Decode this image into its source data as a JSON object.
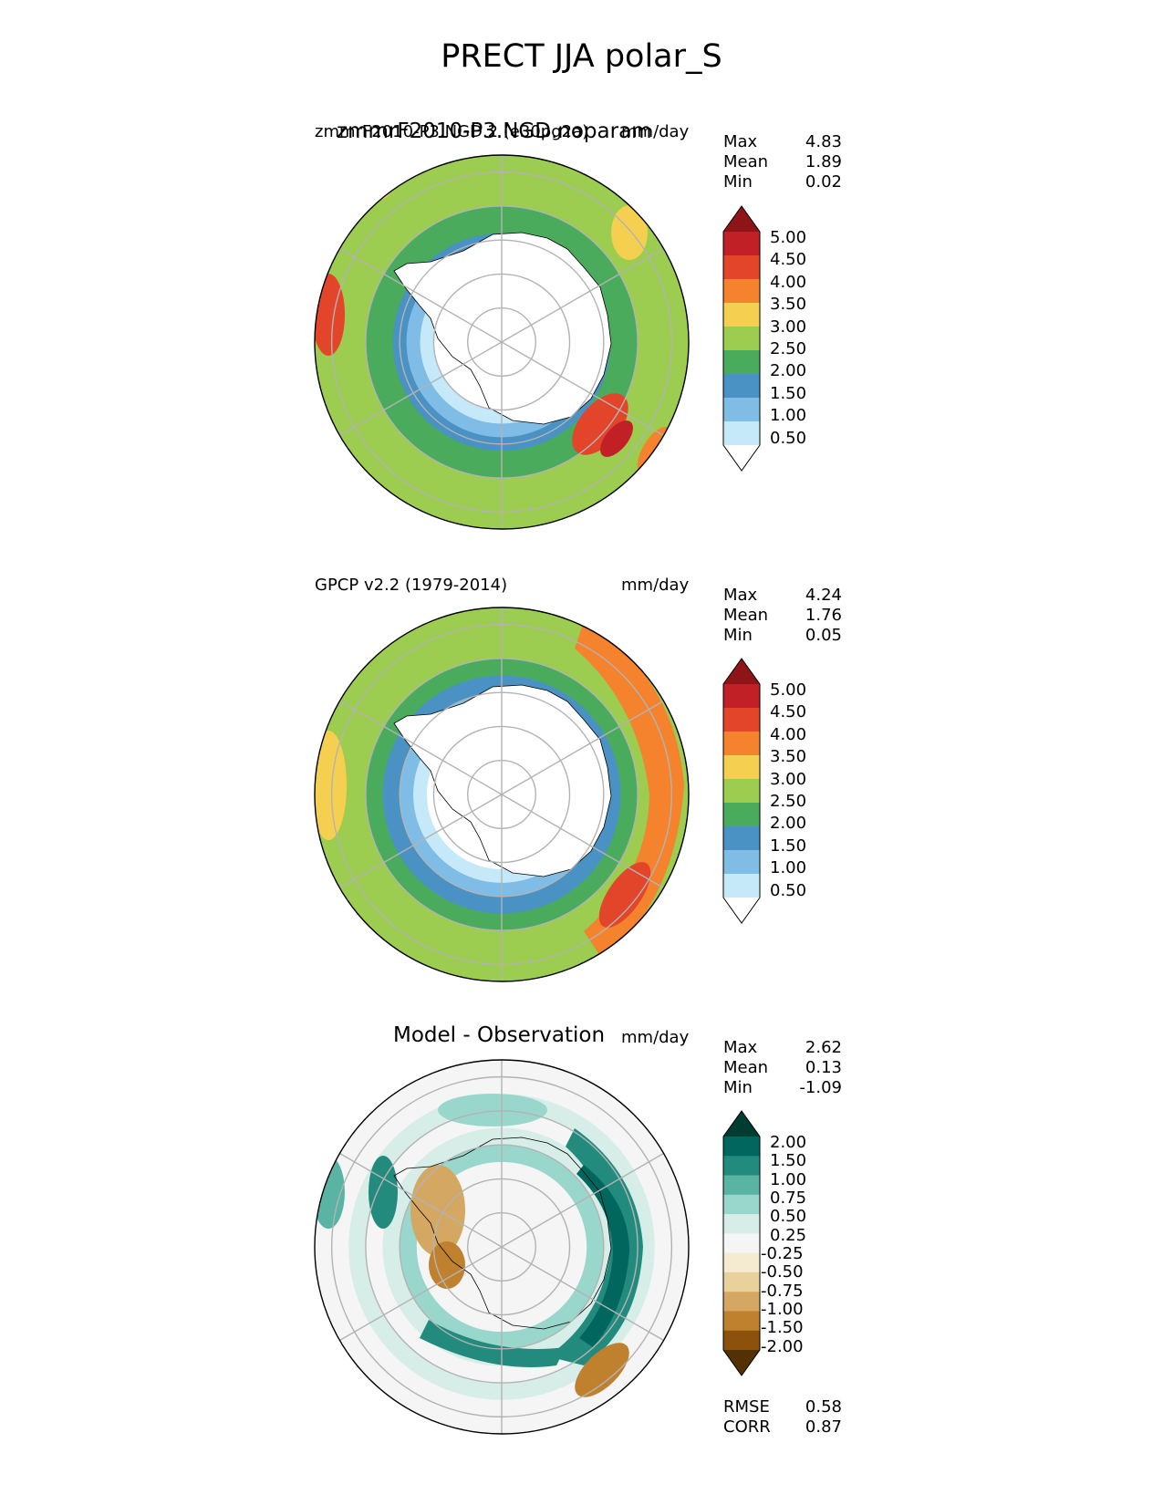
{
  "figure": {
    "title": "PRECT JJA polar_S"
  },
  "colors": {
    "precip_levels": [
      "#ffffff",
      "#c6e9fa",
      "#7fbce6",
      "#4a91c4",
      "#4aab5d",
      "#9ccc50",
      "#f5d050",
      "#f5822d",
      "#e3452a",
      "#c12027",
      "#8e1418"
    ],
    "diff_levels": [
      "#543005",
      "#8c510a",
      "#bf812d",
      "#d4a862",
      "#e8d19a",
      "#f5ebd0",
      "#f5f5f5",
      "#d6ede8",
      "#99d6cc",
      "#5ab4a3",
      "#238a7e",
      "#01665e",
      "#003c30"
    ]
  },
  "panels": [
    {
      "id": "test",
      "center_title": "zmmrF2010-P3.NGD.noparam",
      "left_title": "zmmrF2010-P3.NGD.2 (e30pg2a)",
      "right_title": "mm/day",
      "stats": [
        {
          "label": "Max",
          "value": "4.83"
        },
        {
          "label": "Mean",
          "value": "1.89"
        },
        {
          "label": "Min",
          "value": "0.02"
        }
      ],
      "colorbar": {
        "ticks": [
          "5.00",
          "4.50",
          "4.00",
          "3.50",
          "3.00",
          "2.50",
          "2.00",
          "1.50",
          "1.00",
          "0.50"
        ]
      },
      "rings_mm_day": [
        {
          "lat": -40,
          "value": 2.8
        },
        {
          "lat": -45,
          "value": 2.6
        },
        {
          "lat": -50,
          "value": 2.3
        },
        {
          "lat": -55,
          "value": 2.1
        },
        {
          "lat": -58,
          "value": 1.6
        },
        {
          "lat": -62,
          "value": 1.2
        },
        {
          "lat": -66,
          "value": 0.8
        },
        {
          "lat": -70,
          "value": 0.3
        }
      ]
    },
    {
      "id": "reference",
      "center_title": "",
      "left_title": "GPCP v2.2 (1979-2014)",
      "right_title": "mm/day",
      "stats": [
        {
          "label": "Max",
          "value": "4.24"
        },
        {
          "label": "Mean",
          "value": "1.76"
        },
        {
          "label": "Min",
          "value": "0.05"
        }
      ],
      "colorbar": {
        "ticks": [
          "5.00",
          "4.50",
          "4.00",
          "3.50",
          "3.00",
          "2.50",
          "2.00",
          "1.50",
          "1.00",
          "0.50"
        ]
      },
      "rings_mm_day": [
        {
          "lat": -40,
          "value": 2.7
        },
        {
          "lat": -45,
          "value": 2.5
        },
        {
          "lat": -50,
          "value": 2.2
        },
        {
          "lat": -55,
          "value": 1.7
        },
        {
          "lat": -60,
          "value": 1.3
        },
        {
          "lat": -64,
          "value": 0.8
        },
        {
          "lat": -68,
          "value": 0.3
        }
      ]
    },
    {
      "id": "diff",
      "center_title": "Model - Observation",
      "left_title": "",
      "right_title": "mm/day",
      "stats": [
        {
          "label": "Max",
          "value": "2.62"
        },
        {
          "label": "Mean",
          "value": "0.13"
        },
        {
          "label": "Min",
          "value": "-1.09"
        }
      ],
      "colorbar": {
        "ticks": [
          "2.00",
          "1.50",
          "1.00",
          "0.75",
          "0.50",
          "0.25",
          "-0.25",
          "-0.50",
          "-0.75",
          "-1.00",
          "-1.50",
          "-2.00"
        ]
      },
      "bottom_stats": [
        {
          "label": "RMSE",
          "value": "0.58"
        },
        {
          "label": "CORR",
          "value": "0.87"
        }
      ],
      "rings_mm_day": [
        {
          "lat": -40,
          "value": 0.1
        },
        {
          "lat": -45,
          "value": 0.3
        },
        {
          "lat": -50,
          "value": 0.2
        },
        {
          "lat": -55,
          "value": 0.4
        },
        {
          "lat": -60,
          "value": 0.6
        },
        {
          "lat": -65,
          "value": 0.1
        }
      ]
    }
  ],
  "chart_data": {
    "type": "heatmap",
    "projection": "south-polar-stereographic",
    "lat_range": [
      -90,
      -35
    ],
    "grid": true,
    "units": "mm/day",
    "colorbar_levels_precip": [
      0.5,
      1.0,
      1.5,
      2.0,
      2.5,
      3.0,
      3.5,
      4.0,
      4.5,
      5.0
    ],
    "colorbar_levels_diff": [
      -2.0,
      -1.5,
      -1.0,
      -0.75,
      -0.5,
      -0.25,
      0.25,
      0.5,
      0.75,
      1.0,
      1.5,
      2.0
    ]
  }
}
